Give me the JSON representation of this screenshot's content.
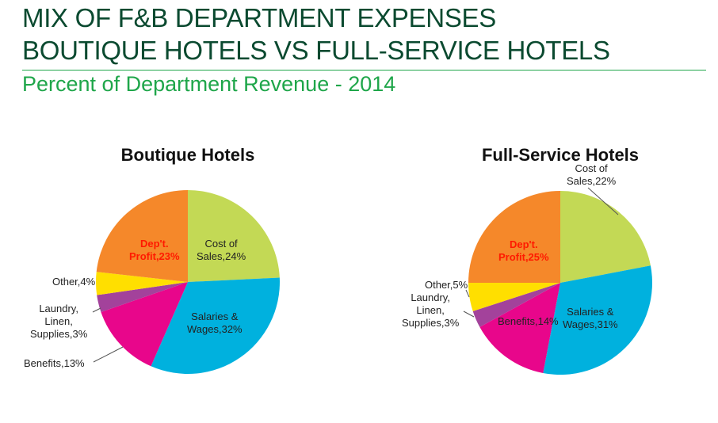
{
  "header": {
    "title_line1": "MIX OF F&B DEPARTMENT EXPENSES",
    "title_line2": "BOUTIQUE HOTELS VS FULL-SERVICE HOTELS",
    "subtitle": "Percent of Department Revenue - 2014"
  },
  "chart_data": [
    {
      "type": "pie",
      "title": "Boutique Hotels",
      "start": "12 o'clock, clockwise",
      "slices": [
        {
          "label": "Cost of Sales",
          "value": 24,
          "text1": "Cost of",
          "text2": "Sales,24%",
          "color": "#c3d955"
        },
        {
          "label": "Salaries & Wages",
          "value": 32,
          "text1": "Salaries &",
          "text2": "Wages,32%",
          "color": "#00b1de"
        },
        {
          "label": "Benefits",
          "value": 13,
          "text1": "Benefits,13%",
          "color": "#e8068b"
        },
        {
          "label": "Laundry, Linen, Supplies",
          "value": 3,
          "text1": "Laundry,",
          "text2": "Linen,",
          "text3": "Supplies,3%",
          "color": "#a3429b"
        },
        {
          "label": "Other",
          "value": 4,
          "text1": "Other,4%",
          "color": "#ffdf00"
        },
        {
          "label": "Dep't. Profit",
          "value": 23,
          "text1": "Dep't.",
          "text2": "Profit,23%",
          "color": "#f5882a"
        }
      ]
    },
    {
      "type": "pie",
      "title": "Full-Service Hotels",
      "start": "12 o'clock, clockwise",
      "slices": [
        {
          "label": "Cost of Sales",
          "value": 22,
          "text1": "Cost of",
          "text2": "Sales,22%",
          "color": "#c3d955"
        },
        {
          "label": "Salaries & Wages",
          "value": 31,
          "text1": "Salaries &",
          "text2": "Wages,31%",
          "color": "#00b1de"
        },
        {
          "label": "Benefits",
          "value": 14,
          "text1": "Benefits,14%",
          "color": "#e8068b"
        },
        {
          "label": "Laundry, Linen, Supplies",
          "value": 3,
          "text1": "Laundry,",
          "text2": "Linen,",
          "text3": "Supplies,3%",
          "color": "#a3429b"
        },
        {
          "label": "Other",
          "value": 5,
          "text1": "Other,5%",
          "color": "#ffdf00"
        },
        {
          "label": "Dep't. Profit",
          "value": 25,
          "text1": "Dep't.",
          "text2": "Profit,25%",
          "color": "#f5882a"
        }
      ]
    }
  ]
}
